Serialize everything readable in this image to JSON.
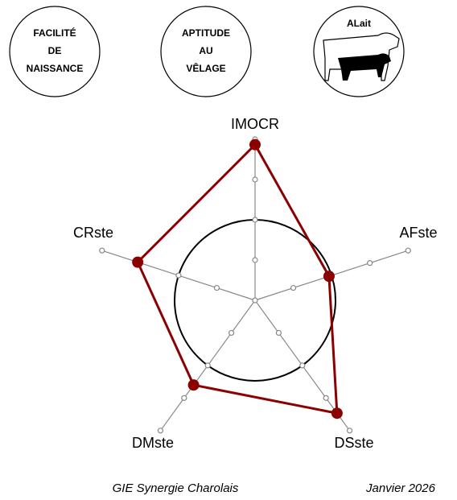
{
  "badges": [
    "FACILITÉ",
    "DE",
    "NAISSANCE",
    "APTITUDE",
    "AU",
    "VÊLAGE",
    "ALait"
  ],
  "chart_data": {
    "type": "radar",
    "categories": [
      "IMOCR",
      "AFste",
      "DSste",
      "DMste",
      "CRste"
    ],
    "values": [
      128,
      99,
      122,
      109,
      116
    ],
    "color": "#8b0000",
    "rlim": [
      70,
      130
    ],
    "rticks": [
      85,
      100,
      115,
      130
    ],
    "reference": 100
  },
  "footer": {
    "left": "GIE Synergie Charolais",
    "right": "Janvier 2026"
  }
}
